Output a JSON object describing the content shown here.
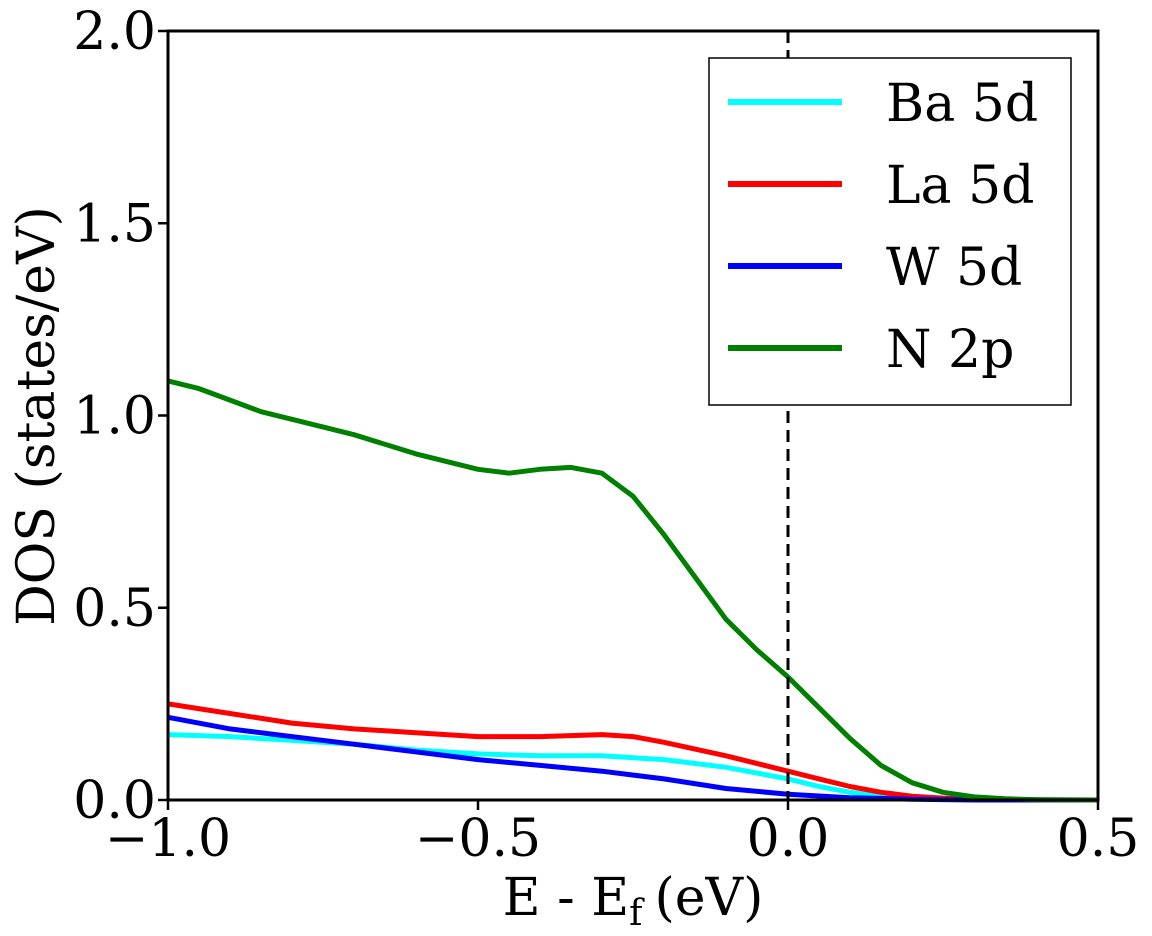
{
  "chart_data": {
    "type": "line",
    "xlabel": "E - E",
    "xlabel_subscript": "f",
    "xlabel_unit": "(eV)",
    "ylabel": "DOS (states/eV)",
    "xlim": [
      -1.0,
      0.5
    ],
    "ylim": [
      0.0,
      2.0
    ],
    "xticks": [
      -1.0,
      -0.5,
      0.0,
      0.5
    ],
    "xtick_labels": [
      "−1.0",
      "−0.5",
      "0.0",
      "0.5"
    ],
    "yticks": [
      0.0,
      0.5,
      1.0,
      1.5,
      2.0
    ],
    "ytick_labels": [
      "0.0",
      "0.5",
      "1.0",
      "1.5",
      "2.0"
    ],
    "grid": false,
    "legend_position": "top-right",
    "fermi_level_x": 0.0,
    "series": [
      {
        "name": "Ba 5d",
        "color": "#00ffff",
        "x": [
          -1.0,
          -0.9,
          -0.8,
          -0.7,
          -0.6,
          -0.5,
          -0.4,
          -0.3,
          -0.2,
          -0.1,
          0.0,
          0.05,
          0.1,
          0.15,
          0.2,
          0.3,
          0.4,
          0.5
        ],
        "y": [
          0.17,
          0.165,
          0.155,
          0.145,
          0.13,
          0.12,
          0.115,
          0.115,
          0.105,
          0.085,
          0.055,
          0.035,
          0.02,
          0.01,
          0.004,
          0.001,
          0.0,
          0.0
        ]
      },
      {
        "name": "La 5d",
        "color": "#ff0000",
        "x": [
          -1.0,
          -0.9,
          -0.8,
          -0.7,
          -0.6,
          -0.5,
          -0.4,
          -0.3,
          -0.25,
          -0.2,
          -0.1,
          0.0,
          0.05,
          0.1,
          0.15,
          0.2,
          0.25,
          0.3,
          0.4,
          0.5
        ],
        "y": [
          0.25,
          0.225,
          0.2,
          0.185,
          0.175,
          0.165,
          0.165,
          0.17,
          0.165,
          0.15,
          0.115,
          0.075,
          0.055,
          0.035,
          0.02,
          0.01,
          0.005,
          0.002,
          0.0,
          0.0
        ]
      },
      {
        "name": "W 5d",
        "color": "#0000ff",
        "x": [
          -1.0,
          -0.9,
          -0.8,
          -0.7,
          -0.6,
          -0.5,
          -0.4,
          -0.3,
          -0.2,
          -0.1,
          0.0,
          0.1,
          0.2,
          0.3,
          0.4,
          0.5
        ],
        "y": [
          0.215,
          0.185,
          0.165,
          0.145,
          0.125,
          0.105,
          0.09,
          0.075,
          0.055,
          0.03,
          0.015,
          0.006,
          0.002,
          0.0,
          0.0,
          0.0
        ]
      },
      {
        "name": "N 2p",
        "color": "#008000",
        "x": [
          -1.0,
          -0.95,
          -0.9,
          -0.85,
          -0.8,
          -0.7,
          -0.6,
          -0.5,
          -0.45,
          -0.4,
          -0.35,
          -0.3,
          -0.25,
          -0.2,
          -0.15,
          -0.1,
          -0.05,
          0.0,
          0.05,
          0.1,
          0.15,
          0.2,
          0.25,
          0.3,
          0.35,
          0.4,
          0.5
        ],
        "y": [
          1.09,
          1.07,
          1.04,
          1.01,
          0.99,
          0.95,
          0.9,
          0.86,
          0.85,
          0.86,
          0.865,
          0.85,
          0.79,
          0.69,
          0.58,
          0.47,
          0.39,
          0.32,
          0.24,
          0.16,
          0.09,
          0.045,
          0.02,
          0.008,
          0.003,
          0.001,
          0.0
        ]
      }
    ]
  }
}
